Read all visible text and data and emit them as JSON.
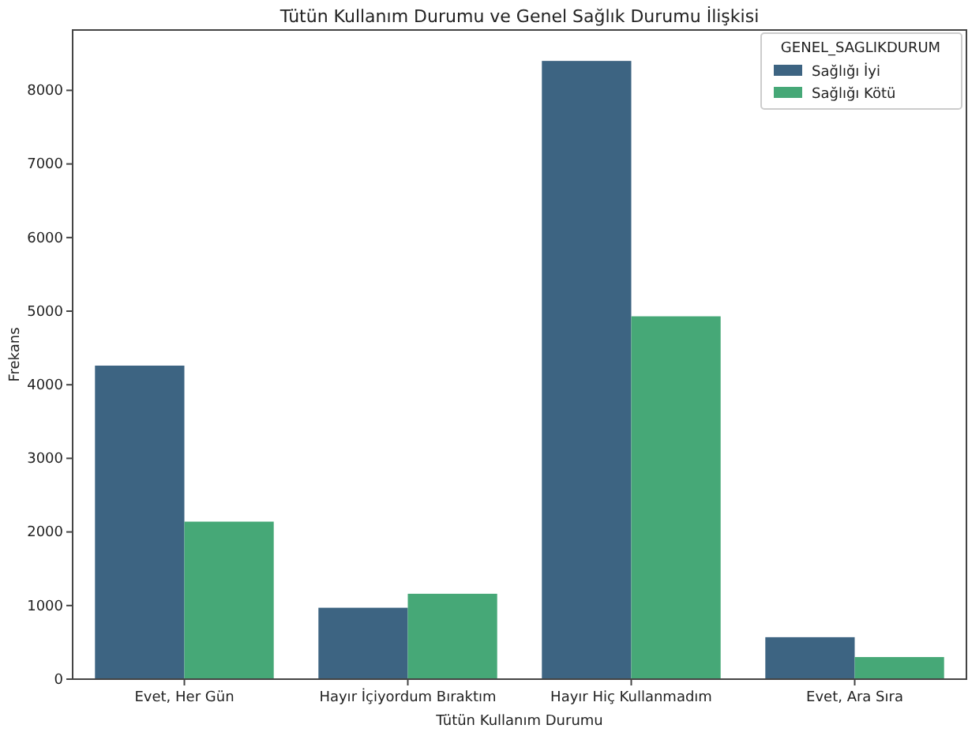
{
  "chart_data": {
    "type": "bar",
    "title": "Tütün Kullanım Durumu ve Genel Sağlık Durumu İlişkisi",
    "xlabel": "Tütün Kullanım Durumu",
    "ylabel": "Frekans",
    "legend_title": "GENEL_SAGLIKDURUM",
    "legend": "top right",
    "categories": [
      "Evet, Her Gün",
      "Hayır İçiyordum Bıraktım",
      "Hayır Hiç Kullanmadım",
      "Evet, Ara Sıra"
    ],
    "series": [
      {
        "name": "Sağlığı İyi",
        "color": "#3d6482",
        "values": [
          4260,
          970,
          8400,
          570
        ]
      },
      {
        "name": "Sağlığı Kötü",
        "color": "#46a877",
        "values": [
          2140,
          1160,
          4930,
          300
        ]
      }
    ],
    "ylim": [
      0,
      8820
    ],
    "yticks": [
      0,
      1000,
      2000,
      3000,
      4000,
      5000,
      6000,
      7000,
      8000
    ]
  }
}
